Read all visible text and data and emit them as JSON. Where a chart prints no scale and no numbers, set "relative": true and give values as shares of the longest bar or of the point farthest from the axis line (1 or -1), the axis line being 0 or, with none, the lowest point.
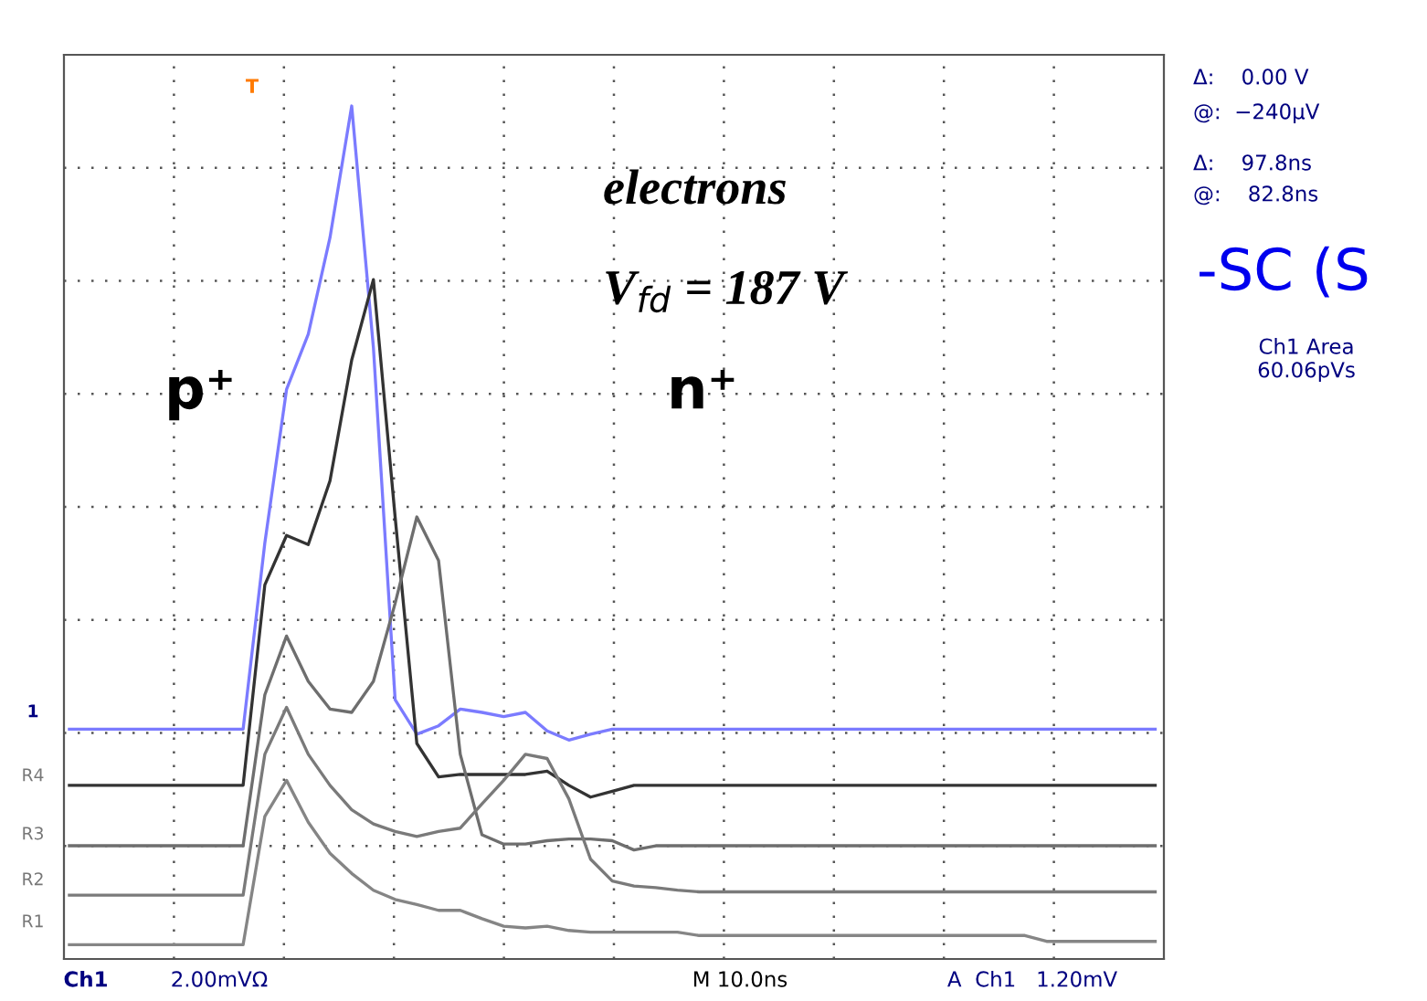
{
  "chart_data": {
    "type": "line",
    "relative": true,
    "tick_labels": false,
    "grid": true,
    "legend": false,
    "marker": "none",
    "line_style": "solid",
    "categories": [
      null,
      null,
      null,
      null,
      null,
      null,
      null,
      null,
      null,
      null,
      null,
      null,
      null,
      null,
      null,
      null,
      null,
      null,
      null,
      null,
      null,
      null,
      null,
      null,
      null,
      null,
      null,
      null,
      null,
      null,
      null,
      null,
      null,
      null,
      null,
      null,
      null,
      null,
      null,
      null,
      null,
      null,
      null,
      null,
      null,
      null,
      null,
      null,
      null,
      null,
      null
    ],
    "series": [
      {
        "color": "#7b7bff",
        "values": [
          0.257,
          0.257,
          0.257,
          0.257,
          0.257,
          0.257,
          0.257,
          0.257,
          0.257,
          0.479,
          0.662,
          0.728,
          0.843,
          1.0,
          0.712,
          0.292,
          0.251,
          0.261,
          0.281,
          0.277,
          0.272,
          0.277,
          0.255,
          0.244,
          0.251,
          0.257,
          0.257,
          0.257,
          0.257,
          0.257,
          0.257,
          0.257,
          0.257,
          0.257,
          0.257,
          0.257,
          0.257,
          0.257,
          0.257,
          0.257,
          0.257,
          0.257,
          0.257,
          0.257,
          0.257,
          0.257,
          0.257,
          0.257,
          0.257,
          0.257,
          0.257
        ]
      },
      {
        "color": "#333333",
        "values": [
          0.19,
          0.19,
          0.19,
          0.19,
          0.19,
          0.19,
          0.19,
          0.19,
          0.19,
          0.429,
          0.488,
          0.477,
          0.553,
          0.697,
          0.793,
          0.51,
          0.24,
          0.2,
          0.203,
          0.203,
          0.203,
          0.203,
          0.207,
          0.19,
          0.176,
          0.183,
          0.19,
          0.19,
          0.19,
          0.19,
          0.19,
          0.19,
          0.19,
          0.19,
          0.19,
          0.19,
          0.19,
          0.19,
          0.19,
          0.19,
          0.19,
          0.19,
          0.19,
          0.19,
          0.19,
          0.19,
          0.19,
          0.19,
          0.19,
          0.19,
          0.19
        ]
      },
      {
        "color": "#6e6e6e",
        "values": [
          0.118,
          0.118,
          0.118,
          0.118,
          0.118,
          0.118,
          0.118,
          0.118,
          0.118,
          0.298,
          0.368,
          0.314,
          0.281,
          0.277,
          0.314,
          0.407,
          0.51,
          0.458,
          0.227,
          0.131,
          0.12,
          0.12,
          0.124,
          0.126,
          0.126,
          0.124,
          0.113,
          0.118,
          0.118,
          0.118,
          0.118,
          0.118,
          0.118,
          0.118,
          0.118,
          0.118,
          0.118,
          0.118,
          0.118,
          0.118,
          0.118,
          0.118,
          0.118,
          0.118,
          0.118,
          0.118,
          0.118,
          0.118,
          0.118,
          0.118,
          0.118
        ]
      },
      {
        "color": "#7a7a7a",
        "values": [
          0.059,
          0.059,
          0.059,
          0.059,
          0.059,
          0.059,
          0.059,
          0.059,
          0.059,
          0.227,
          0.283,
          0.227,
          0.19,
          0.161,
          0.144,
          0.135,
          0.129,
          0.135,
          0.139,
          0.168,
          0.196,
          0.227,
          0.222,
          0.174,
          0.102,
          0.076,
          0.07,
          0.068,
          0.065,
          0.063,
          0.063,
          0.063,
          0.063,
          0.063,
          0.063,
          0.063,
          0.063,
          0.063,
          0.063,
          0.063,
          0.063,
          0.063,
          0.063,
          0.063,
          0.063,
          0.063,
          0.063,
          0.063,
          0.063,
          0.063,
          0.063
        ]
      },
      {
        "color": "#858585",
        "values": [
          0,
          0,
          0,
          0,
          0,
          0,
          0,
          0,
          0,
          0.153,
          0.196,
          0.146,
          0.109,
          0.085,
          0.065,
          0.054,
          0.048,
          0.041,
          0.041,
          0.031,
          0.022,
          0.02,
          0.022,
          0.017,
          0.015,
          0.015,
          0.015,
          0.015,
          0.015,
          0.011,
          0.011,
          0.011,
          0.011,
          0.011,
          0.011,
          0.011,
          0.011,
          0.011,
          0.011,
          0.011,
          0.011,
          0.011,
          0.011,
          0.011,
          0.011,
          0.004,
          0.004,
          0.004,
          0.004,
          0.004,
          0.004
        ]
      }
    ],
    "annotations": [
      "p⁺",
      "n⁺",
      "electrons",
      "V$_{fd}$ = 187 V",
      "Δ:    0.00 V",
      "@:  −240µV",
      "Δ:    97.8ns",
      "@:    82.8ns",
      "-SC (S",
      "Ch1 Area\n60.06pVs",
      "Ch1",
      "2.00mVΩ",
      "M 10.0ns",
      "A  Ch1   1.20mV",
      "1",
      "R4",
      "R3",
      "R2",
      "R1",
      "T"
    ]
  }
}
